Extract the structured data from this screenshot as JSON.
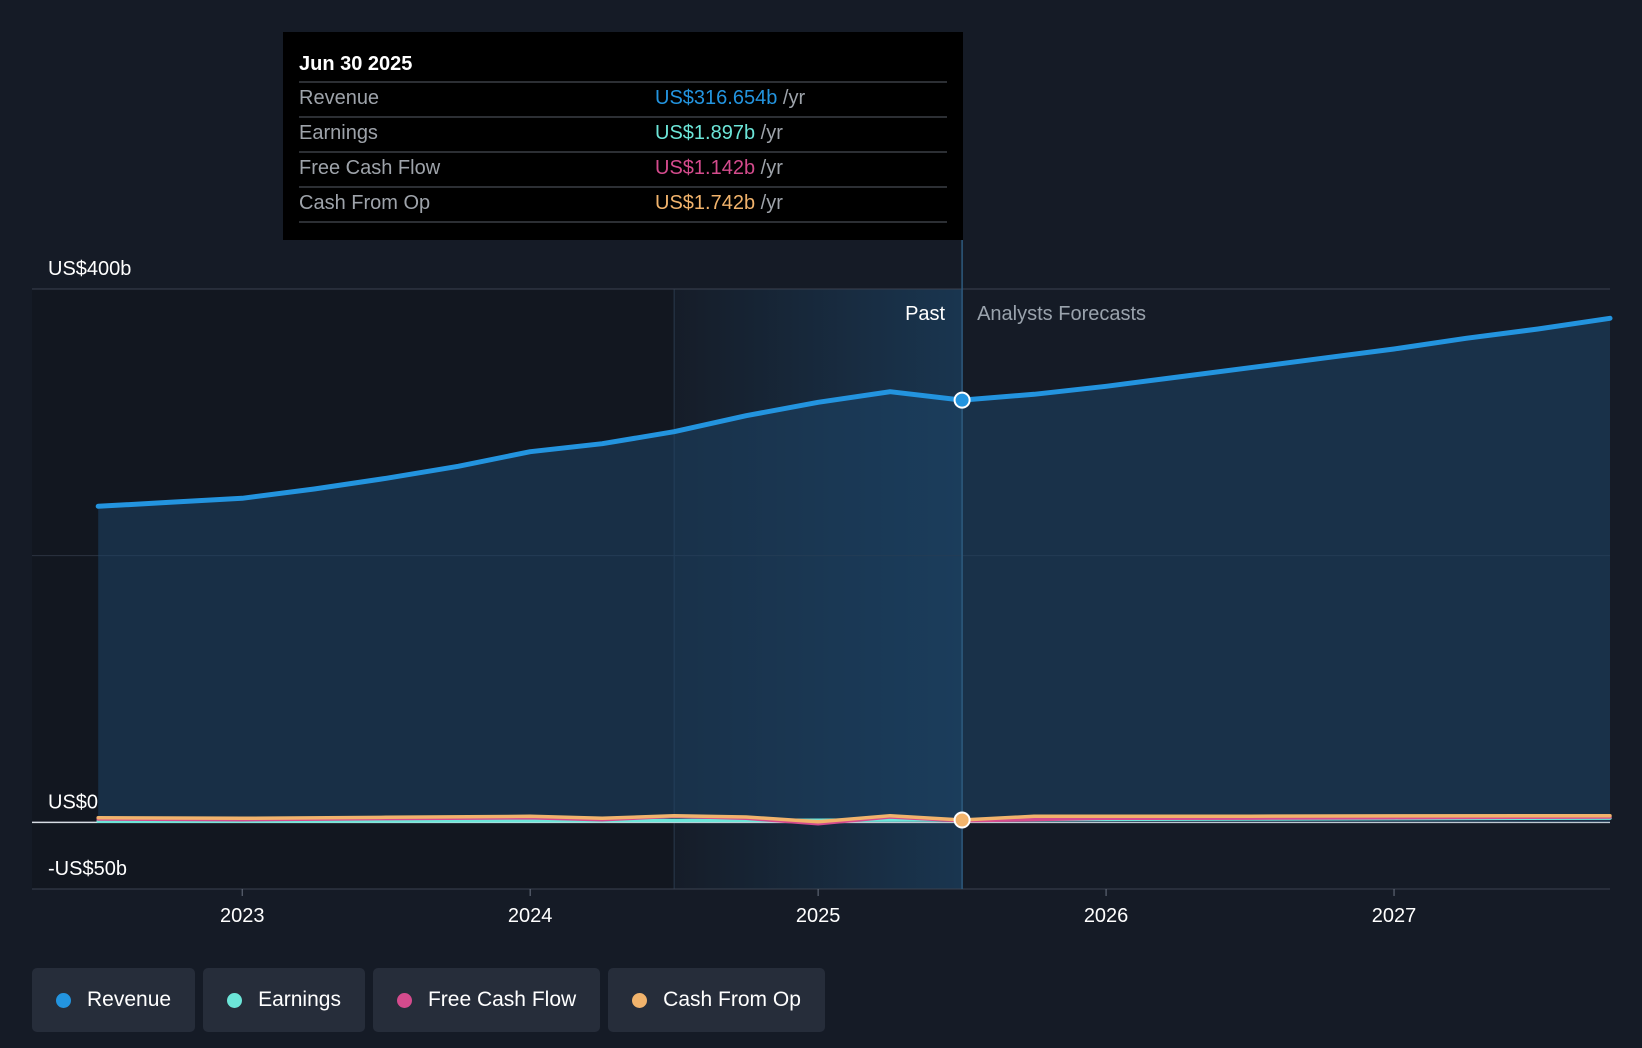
{
  "colors": {
    "background": "#151b26",
    "revenue": "#2394df",
    "earnings": "#6ce5d8",
    "free_cash_flow": "#d44b8d",
    "cash_from_op": "#f1b36c"
  },
  "tooltip": {
    "date": "Jun 30 2025",
    "rows": [
      {
        "label": "Revenue",
        "value": "US$316.654b",
        "unit": "/yr",
        "color": "#2394df"
      },
      {
        "label": "Earnings",
        "value": "US$1.897b",
        "unit": "/yr",
        "color": "#6ce5d8"
      },
      {
        "label": "Free Cash Flow",
        "value": "US$1.142b",
        "unit": "/yr",
        "color": "#d44b8d"
      },
      {
        "label": "Cash From Op",
        "value": "US$1.742b",
        "unit": "/yr",
        "color": "#f1b36c"
      }
    ]
  },
  "chart_data": {
    "type": "area",
    "y_unit": "US$ billions",
    "ylim": [
      -50,
      400
    ],
    "xlim": [
      2022.27,
      2027.75
    ],
    "y_ticks": [
      {
        "value": 400,
        "label": "US$400b"
      },
      {
        "value": 0,
        "label": "US$0"
      },
      {
        "value": -50,
        "label": "-US$50b"
      }
    ],
    "x_ticks": [
      {
        "value": 2023,
        "label": "2023"
      },
      {
        "value": 2024,
        "label": "2024"
      },
      {
        "value": 2025,
        "label": "2025"
      },
      {
        "value": 2026,
        "label": "2026"
      },
      {
        "value": 2027,
        "label": "2027"
      }
    ],
    "regions": {
      "past_label": "Past",
      "forecast_label": "Analysts Forecasts",
      "past_start": 2024.5,
      "divider": 2025.5
    },
    "grid": true,
    "legend_position": "bottom-left",
    "series": [
      {
        "name": "Revenue",
        "key": "revenue",
        "color": "#2394df",
        "area": true,
        "x": [
          2022.5,
          2022.75,
          2023.0,
          2023.25,
          2023.5,
          2023.75,
          2024.0,
          2024.25,
          2024.5,
          2024.75,
          2025.0,
          2025.25,
          2025.5,
          2025.75,
          2026.0,
          2026.25,
          2026.5,
          2026.75,
          2027.0,
          2027.25,
          2027.5,
          2027.75
        ],
        "y": [
          237,
          240,
          243,
          250,
          258,
          267,
          278,
          284,
          293,
          305,
          315,
          323,
          316.654,
          321,
          327,
          334,
          341,
          348,
          355,
          363,
          370,
          378
        ]
      },
      {
        "name": "Earnings",
        "key": "earnings",
        "color": "#6ce5d8",
        "x": [
          2022.5,
          2023.0,
          2023.5,
          2024.0,
          2024.5,
          2025.0,
          2025.5,
          2026.0,
          2026.5,
          2027.0,
          2027.75
        ],
        "y": [
          0.8,
          0.9,
          1.0,
          1.2,
          1.4,
          1.6,
          1.897,
          2.2,
          2.5,
          2.8,
          3.2
        ]
      },
      {
        "name": "Free Cash Flow",
        "key": "free_cash_flow",
        "color": "#d44b8d",
        "x": [
          2022.5,
          2023.0,
          2023.5,
          2024.0,
          2024.25,
          2024.5,
          2024.75,
          2025.0,
          2025.25,
          2025.5,
          2026.0,
          2026.5,
          2027.0,
          2027.75
        ],
        "y": [
          2.5,
          2.0,
          2.8,
          3.5,
          2.0,
          4.5,
          3.0,
          -1.0,
          4.0,
          1.142,
          3.0,
          3.2,
          3.5,
          4.0
        ]
      },
      {
        "name": "Cash From Op",
        "key": "cash_from_op",
        "color": "#f1b36c",
        "x": [
          2022.5,
          2023.0,
          2023.5,
          2024.0,
          2024.25,
          2024.5,
          2024.75,
          2025.0,
          2025.25,
          2025.5,
          2025.75,
          2026.0,
          2026.5,
          2027.0,
          2027.75
        ],
        "y": [
          3.5,
          3.0,
          3.8,
          4.5,
          3.0,
          5.0,
          4.0,
          0.5,
          5.0,
          1.742,
          4.5,
          4.5,
          4.6,
          4.8,
          5.0
        ]
      }
    ]
  },
  "legend": [
    {
      "label": "Revenue",
      "color": "#2394df"
    },
    {
      "label": "Earnings",
      "color": "#6ce5d8"
    },
    {
      "label": "Free Cash Flow",
      "color": "#d44b8d"
    },
    {
      "label": "Cash From Op",
      "color": "#f1b36c"
    }
  ]
}
